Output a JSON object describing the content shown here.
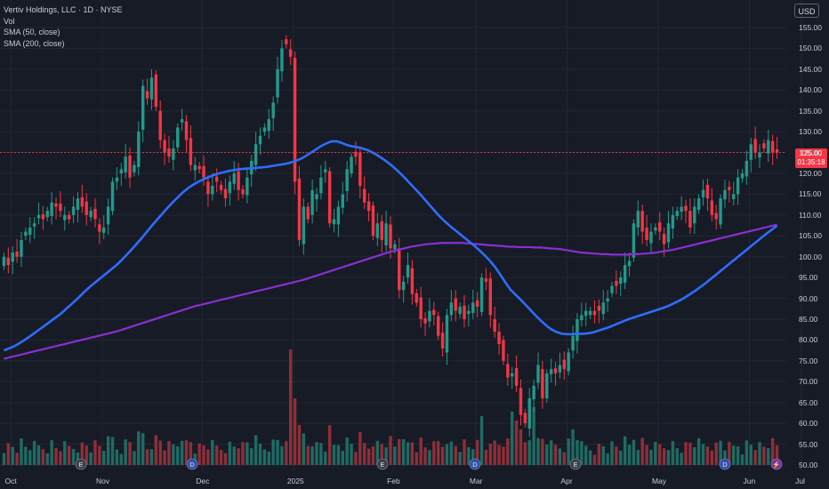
{
  "legend": {
    "title": "Vertiv Holdings, LLC · 1D · NYSE",
    "vol": "Vol",
    "sma50": "SMA (50, close)",
    "sma200": "SMA (200, close)"
  },
  "currency": "USD",
  "price_tag": {
    "price": "125.00",
    "countdown": "01:35:18"
  },
  "colors": {
    "up": "#22998a",
    "down": "#f23645",
    "sma50": "#2f6dff",
    "sma200": "#8a2fd0",
    "vol_up": "#1f6b63",
    "vol_down": "#8e2f38",
    "background": "#171b26"
  },
  "chart_data": {
    "type": "candlestick",
    "ylim": [
      48,
      160
    ],
    "yticks": [
      "155.00",
      "150.00",
      "145.00",
      "140.00",
      "135.00",
      "130.00",
      "125.00",
      "120.00",
      "115.00",
      "110.00",
      "105.00",
      "100.00",
      "95.00",
      "90.00",
      "85.00",
      "80.00",
      "75.00",
      "70.00",
      "65.00",
      "60.00",
      "55.00",
      "50.00"
    ],
    "xticks": [
      "Oct",
      "Nov",
      "Dec",
      "2025",
      "Feb",
      "Mar",
      "Apr",
      "May",
      "Jun",
      "Jul"
    ],
    "closes": [
      100,
      98,
      101,
      100,
      104,
      106,
      107,
      108,
      110,
      109,
      111,
      113,
      112,
      111,
      110,
      109,
      112,
      114,
      112,
      110,
      111,
      109,
      106,
      107,
      112,
      118,
      119,
      121,
      124,
      119,
      122,
      130,
      141,
      138,
      143,
      136,
      128,
      125,
      124,
      126,
      131,
      133,
      128,
      122,
      122,
      121,
      119,
      115,
      117,
      118,
      116,
      114,
      118,
      120,
      116,
      115,
      119,
      123,
      127,
      129,
      131,
      133,
      137,
      145,
      150,
      151,
      148,
      118,
      104,
      112,
      109,
      116,
      115,
      119,
      121,
      108,
      109,
      112,
      115,
      121,
      124,
      124,
      117,
      113,
      111,
      105,
      108,
      104,
      108,
      102,
      103,
      92,
      94,
      98,
      91,
      89,
      85,
      84,
      87,
      86,
      81,
      78,
      86,
      89,
      87,
      88,
      85,
      87,
      89,
      88,
      95,
      94,
      86,
      82,
      79,
      75,
      71,
      72,
      69,
      62,
      60,
      66,
      69,
      74,
      66,
      72,
      73,
      72,
      74,
      73,
      77,
      81,
      85,
      86,
      87,
      87,
      86,
      87,
      89,
      90,
      93,
      93,
      95,
      98,
      99,
      108,
      111,
      106,
      104,
      106,
      107,
      106,
      103,
      108,
      110,
      111,
      112,
      111,
      107,
      112,
      114,
      116,
      114,
      110,
      109,
      114,
      116,
      116,
      115,
      119,
      120,
      123,
      127,
      125,
      125,
      126,
      128,
      125,
      125
    ],
    "sma50": [
      77.5,
      78,
      78.5,
      79.2,
      80,
      80.8,
      81.7,
      82.6,
      83.5,
      84.4,
      85.3,
      86.2,
      87.3,
      88.4,
      89.5,
      90.7,
      91.9,
      93,
      94,
      95,
      96,
      97,
      98,
      99.2,
      100.5,
      101.8,
      103.2,
      104.6,
      106.1,
      107.6,
      109,
      110.4,
      111.8,
      113.1,
      114.3,
      115.5,
      116.5,
      117.3,
      118,
      118.6,
      119.1,
      119.6,
      120,
      120.3,
      120.6,
      120.8,
      121,
      121.1,
      121.2,
      121.3,
      121.4,
      121.5,
      121.7,
      121.9,
      122.1,
      122.3,
      122.6,
      123,
      123.5,
      124.2,
      125,
      125.8,
      126.6,
      127.2,
      127.7,
      127.7,
      127.3,
      126.8,
      126.5,
      126.3,
      126,
      125.6,
      125,
      124.3,
      123.5,
      122.6,
      121.6,
      120.5,
      119.3,
      118,
      116.7,
      115.4,
      114,
      112.6,
      111.2,
      109.8,
      108.6,
      107.5,
      106.5,
      105.5,
      104.5,
      103.5,
      102.5,
      101.4,
      100.2,
      98.9,
      97.4,
      95.6,
      93.7,
      92,
      90.8,
      89.6,
      88.3,
      87,
      85.7,
      84.5,
      83.4,
      82.5,
      81.9,
      81.5,
      81.4,
      81.4,
      81.5,
      81.5,
      81.6,
      81.8,
      82.2,
      82.6,
      83,
      83.5,
      84,
      84.5,
      85,
      85.4,
      85.8,
      86.2,
      86.6,
      87,
      87.4,
      87.8,
      88.3,
      88.9,
      89.5,
      90.2,
      91,
      91.8,
      92.7,
      93.6,
      94.6,
      95.6,
      96.6,
      97.6,
      98.6,
      99.6,
      100.6,
      101.6,
      102.6,
      103.6,
      104.6,
      105.6,
      106.5,
      107.5
    ],
    "sma200": [
      75.5,
      75.8,
      76.1,
      76.4,
      76.7,
      77,
      77.3,
      77.6,
      77.9,
      78.2,
      78.5,
      78.8,
      79.1,
      79.4,
      79.7,
      80,
      80.3,
      80.6,
      80.9,
      81.2,
      81.5,
      81.8,
      82.1,
      82.5,
      82.9,
      83.3,
      83.7,
      84.1,
      84.5,
      84.9,
      85.3,
      85.7,
      86.1,
      86.5,
      86.9,
      87.3,
      87.7,
      88.1,
      88.4,
      88.7,
      89,
      89.3,
      89.6,
      89.9,
      90.2,
      90.5,
      90.8,
      91.1,
      91.4,
      91.7,
      92,
      92.3,
      92.6,
      92.9,
      93.2,
      93.5,
      93.8,
      94.1,
      94.4,
      94.8,
      95.2,
      95.6,
      96,
      96.4,
      96.8,
      97.2,
      97.6,
      98,
      98.4,
      98.8,
      99.2,
      99.6,
      100,
      100.4,
      100.8,
      101.2,
      101.5,
      101.8,
      102.1,
      102.4,
      102.6,
      102.8,
      103,
      103.1,
      103.2,
      103.3,
      103.3,
      103.3,
      103.3,
      103.3,
      103.2,
      103.1,
      103,
      102.9,
      102.8,
      102.7,
      102.6,
      102.5,
      102.4,
      102.4,
      102.3,
      102.3,
      102.3,
      102.2,
      102.2,
      102.1,
      102,
      101.9,
      101.8,
      101.6,
      101.4,
      101.2,
      101,
      100.9,
      100.8,
      100.7,
      100.6,
      100.6,
      100.5,
      100.5,
      100.5,
      100.5,
      100.6,
      100.6,
      100.7,
      100.8,
      100.9,
      101.1,
      101.3,
      101.5,
      101.7,
      102,
      102.3,
      102.6,
      102.9,
      103.2,
      103.5,
      103.8,
      104.1,
      104.4,
      104.7,
      105.0,
      105.3,
      105.6,
      105.9,
      106.2,
      106.5,
      106.8,
      107.1,
      107.4,
      107.7
    ]
  }
}
